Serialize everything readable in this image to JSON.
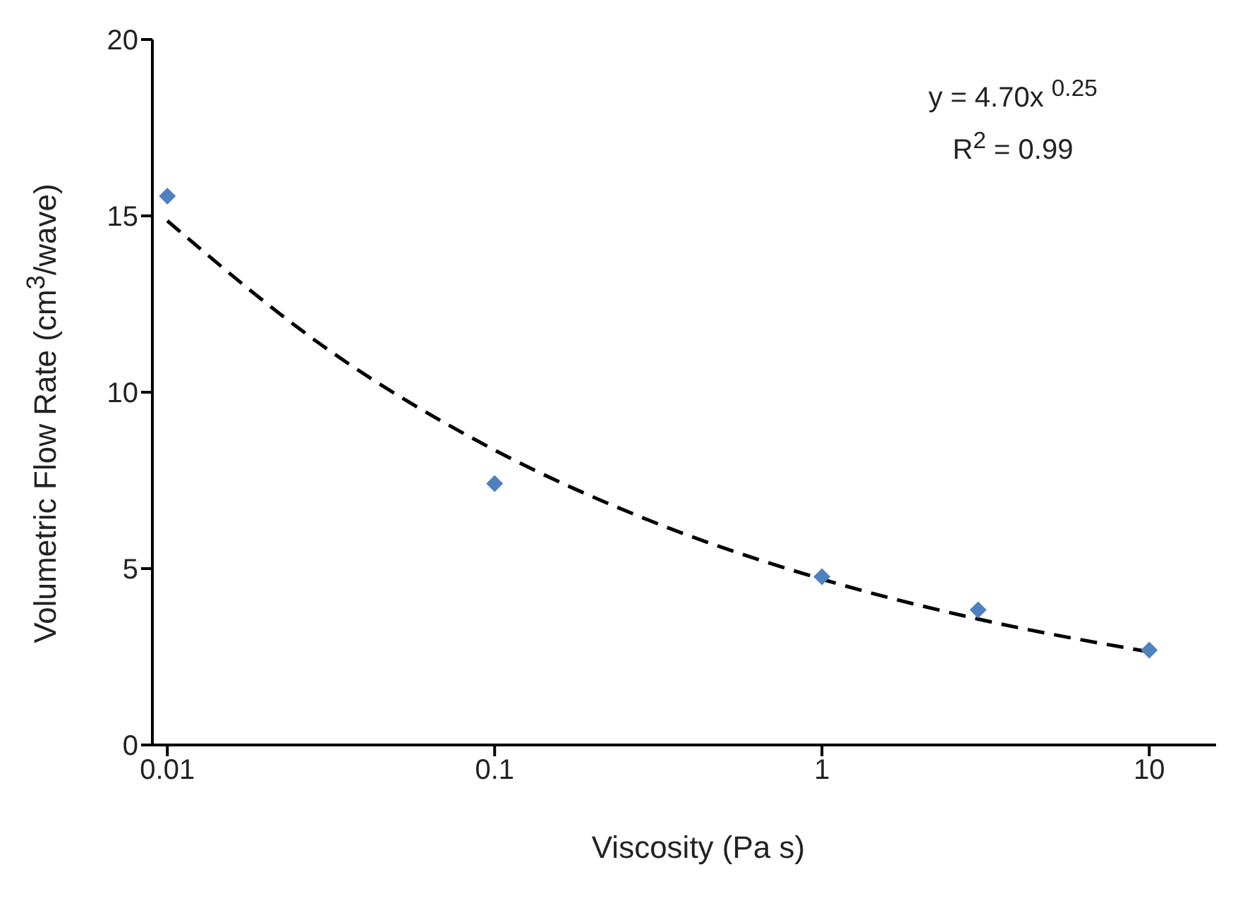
{
  "chart_data": {
    "type": "scatter",
    "xlabel": "Viscosity (Pa s)",
    "ylabel": "Volumetric Flow Rate (cm$^{3}$/wave)",
    "log": "x",
    "xlim": [
      0.009,
      16
    ],
    "xticks": [
      0.01,
      0.1,
      1,
      10
    ],
    "ylim": [
      0,
      20
    ],
    "yticks": [
      0,
      5,
      10,
      15,
      20
    ],
    "grid": false,
    "legend": false,
    "annotations": [
      "y = 4.70x $^{0.25}$",
      "R$^{2}$ = 0.99"
    ],
    "series": [
      {
        "color": "#4f81bd",
        "marker": "diamond",
        "x": [
          0.01,
          0.1,
          1,
          3,
          10
        ],
        "values": [
          15.56,
          7.41,
          4.77,
          3.83,
          2.69
        ]
      },
      {
        "type": "line",
        "color": "#000000",
        "line_style": "dashed",
        "marker": "none",
        "x": [
          0.01,
          0.03,
          0.1,
          0.3,
          1,
          3,
          10
        ],
        "values": [
          14.86,
          11.3,
          8.36,
          6.35,
          4.7,
          3.57,
          2.64
        ]
      }
    ]
  }
}
